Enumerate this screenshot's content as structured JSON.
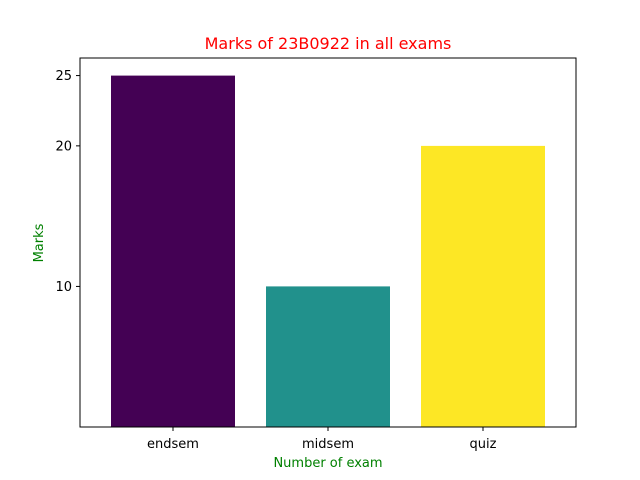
{
  "chart_data": {
    "type": "bar",
    "title": "Marks of 23B0922 in all exams",
    "xlabel": "Number of exam",
    "ylabel": "Marks",
    "categories": [
      "endsem",
      "midsem",
      "quiz"
    ],
    "values": [
      25,
      10,
      20
    ],
    "bar_colors": [
      "#440154",
      "#21918c",
      "#fde725"
    ],
    "ylim": [
      0,
      26.25
    ],
    "yticks": [
      10,
      20,
      25
    ],
    "grid": false,
    "colors": {
      "title": "#ff0000",
      "axis_labels": "#008000"
    }
  }
}
